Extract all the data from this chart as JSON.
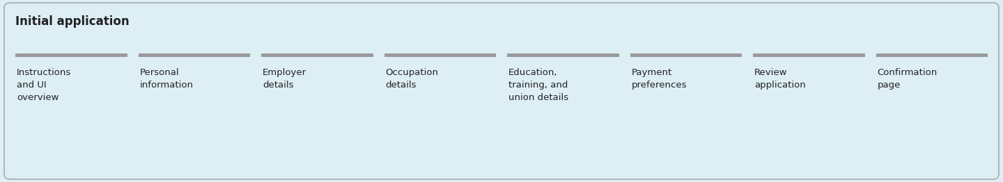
{
  "title": "Initial application",
  "background_color": "#ddeef5",
  "border_color": "#aaaaaa",
  "title_fontsize": 12,
  "title_fontweight": "bold",
  "sections": [
    "Instructions\nand UI\noverview",
    "Personal\ninformation",
    "Employer\ndetails",
    "Occupation\ndetails",
    "Education,\ntraining, and\nunion details",
    "Payment\npreferences",
    "Review\napplication",
    "Confirmation\npage"
  ],
  "bar_color": "#999999",
  "text_fontsize": 9.5,
  "text_color": "#222222",
  "fig_width": 14.4,
  "fig_height": 2.62,
  "dpi": 100
}
